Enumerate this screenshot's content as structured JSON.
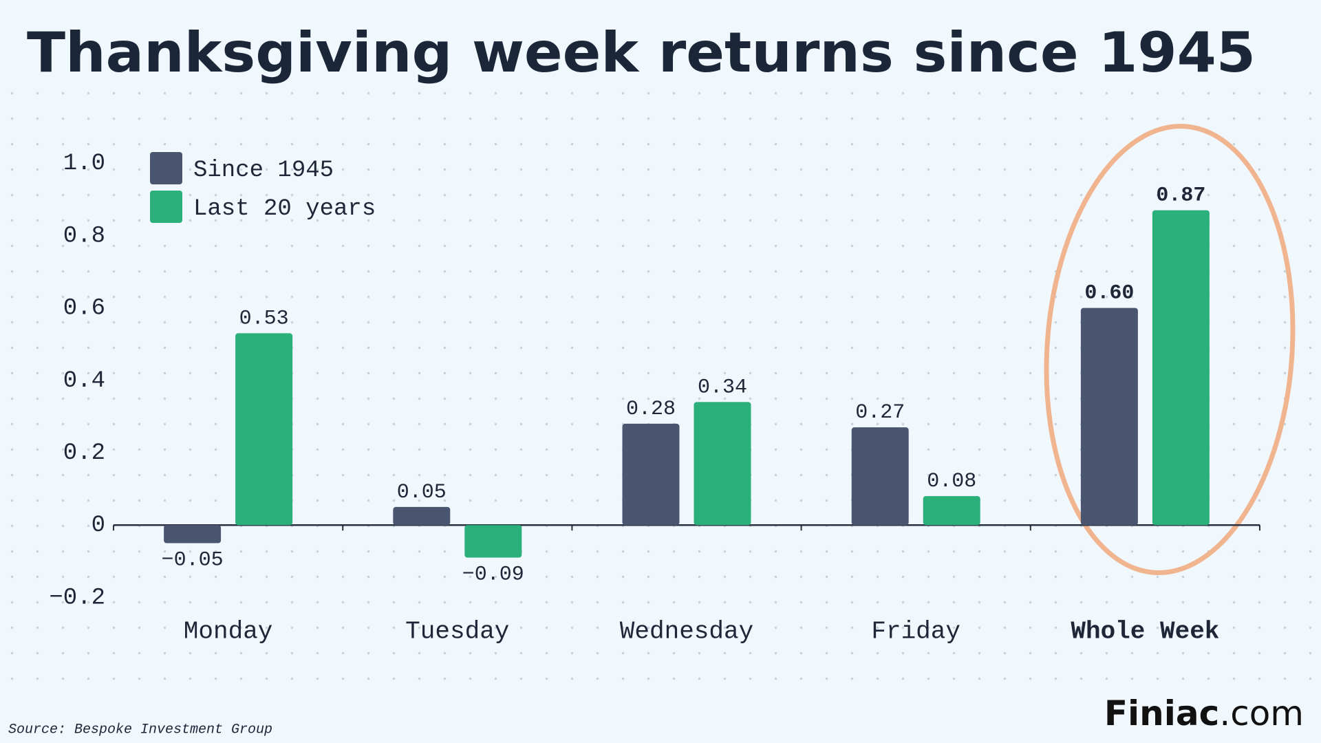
{
  "chart_data": {
    "type": "bar",
    "title": "Thanksgiving week returns since 1945",
    "categories": [
      "Monday",
      "Tuesday",
      "Wednesday",
      "Friday",
      "Whole Week"
    ],
    "series": [
      {
        "name": "Since 1945",
        "color": "#4a5670",
        "values": [
          -0.05,
          0.05,
          0.28,
          0.27,
          0.6
        ],
        "value_labels": [
          "−0.05",
          "0.05",
          "0.28",
          "0.27",
          "0.60"
        ]
      },
      {
        "name": "Last 20 years",
        "color": "#2bb07b",
        "values": [
          0.53,
          -0.09,
          0.34,
          0.08,
          0.87
        ],
        "value_labels": [
          "0.53",
          "−0.09",
          "0.34",
          "0.08",
          "0.87"
        ]
      }
    ],
    "ylim": [
      -0.3,
      1.2
    ],
    "yticks": [
      {
        "value": -0.2,
        "label": "−0.2"
      },
      0,
      0.2,
      0.4,
      0.6,
      0.8,
      {
        "value": 1,
        "label": "1.0"
      }
    ],
    "legend": "upper left",
    "source": "Source: Bespoke Investment Group",
    "brand": {
      "name": "Finiac",
      "suffix": ".com"
    }
  }
}
